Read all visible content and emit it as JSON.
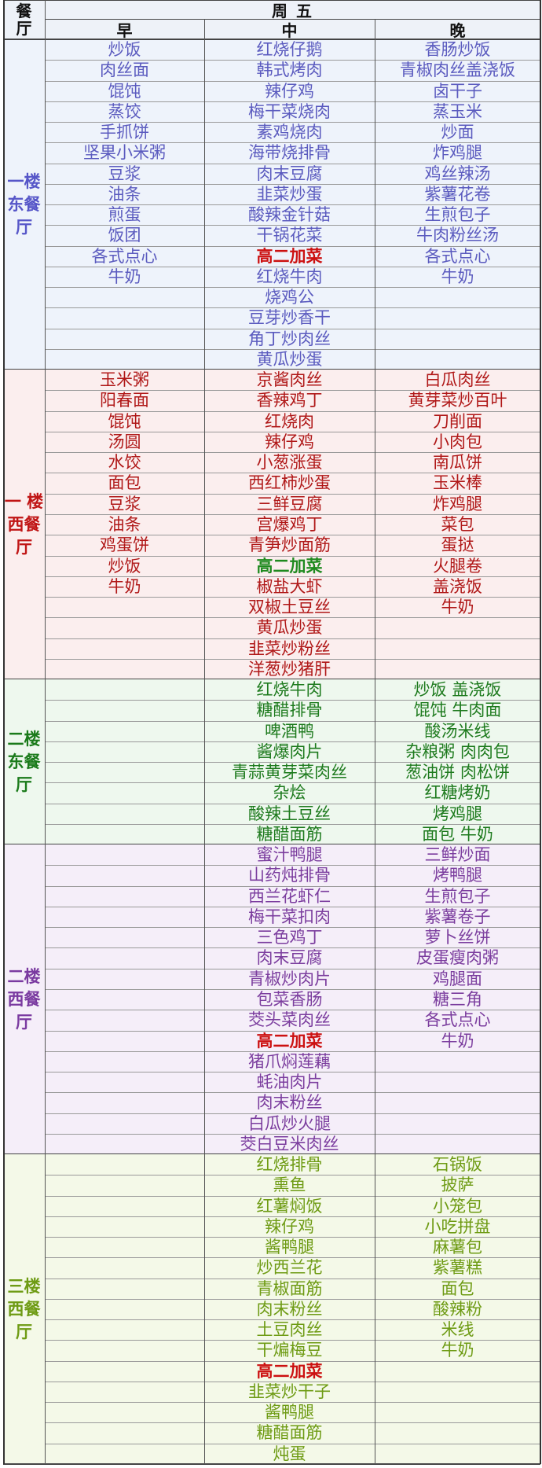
{
  "header": {
    "canteen_label": "餐\n厅",
    "day": "周 五",
    "meal_labels": [
      "早",
      "中",
      "晚"
    ]
  },
  "sections": [
    {
      "hall": "一楼\n东餐\n厅",
      "color": "#5b5bbf",
      "hall_color": "#5656c8",
      "bg": "#eef3fb",
      "special_color": "#cc1111",
      "rows": 16,
      "breakfast": [
        "炒饭",
        "肉丝面",
        "馄饨",
        "蒸饺",
        "手抓饼",
        "坚果小米粥",
        "豆浆",
        "油条",
        "煎蛋",
        "饭团",
        "各式点心",
        "牛奶"
      ],
      "lunch": [
        "红烧仔鹅",
        "韩式烤肉",
        "辣仔鸡",
        "梅干菜烧肉",
        "素鸡烧肉",
        "海带烧排骨",
        "肉末豆腐",
        "韭菜炒蛋",
        "酸辣金针菇",
        "干锅花菜",
        "高二加菜",
        "红烧牛肉",
        "烧鸡公",
        "豆芽炒香干",
        "角丁炒肉丝",
        "黄瓜炒蛋"
      ],
      "lunch_special_index": 10,
      "dinner": [
        "香肠炒饭",
        "青椒肉丝盖浇饭",
        "卤干子",
        "蒸玉米",
        "炒面",
        "炸鸡腿",
        "鸡丝辣汤",
        "紫薯花卷",
        "生煎包子",
        "牛肉粉丝汤",
        "各式点心",
        "牛奶"
      ]
    },
    {
      "hall": "一 楼\n西餐\n厅",
      "color": "#b01818",
      "hall_color": "#c01515",
      "bg": "#fbeeee",
      "special_color": "#1f8a1f",
      "rows": 15,
      "breakfast": [
        "玉米粥",
        "阳春面",
        "馄饨",
        "汤圆",
        "水饺",
        "面包",
        "豆浆",
        "油条",
        "鸡蛋饼",
        "炒饭",
        "牛奶"
      ],
      "lunch": [
        "京酱肉丝",
        "香辣鸡丁",
        "红烧肉",
        "辣仔鸡",
        "小葱涨蛋",
        "西红柿炒蛋",
        "三鲜豆腐",
        "宫爆鸡丁",
        "青笋炒面筋",
        "高二加菜",
        "椒盐大虾",
        "双椒土豆丝",
        "黄瓜炒蛋",
        "韭菜炒粉丝",
        "洋葱炒猪肝"
      ],
      "lunch_special_index": 9,
      "dinner": [
        "白瓜肉丝",
        "黄芽菜炒百叶",
        "刀削面",
        "小肉包",
        "南瓜饼",
        "玉米棒",
        "炸鸡腿",
        "菜包",
        "蛋挞",
        "火腿卷",
        "盖浇饭",
        "牛奶"
      ]
    },
    {
      "hall": "二楼\n东餐\n厅",
      "color": "#1d7a1d",
      "hall_color": "#1a7a1a",
      "bg": "#eef8ee",
      "special_color": "#1d7a1d",
      "rows": 8,
      "breakfast": [],
      "lunch": [
        "红烧牛肉",
        "糖醋排骨",
        "啤酒鸭",
        "酱爆肉片",
        "青蒜黄芽菜肉丝",
        "杂烩",
        "酸辣土豆丝",
        "糖醋面筋"
      ],
      "lunch_special_index": -1,
      "dinner": [
        "炒饭 盖浇饭",
        "馄饨 牛肉面",
        "酸汤米线",
        "杂粮粥 肉肉包",
        "葱油饼 肉松饼",
        "红糖烤奶",
        "烤鸡腿",
        "面包 牛奶"
      ]
    },
    {
      "hall": "二楼\n西餐\n厅",
      "color": "#7b3d9e",
      "hall_color": "#7a3aa0",
      "bg": "#f5eef9",
      "special_color": "#cc1111",
      "rows": 15,
      "breakfast": [],
      "lunch": [
        "蜜汁鸭腿",
        "山药炖排骨",
        "西兰花虾仁",
        "梅干菜扣肉",
        "三色鸡丁",
        "肉末豆腐",
        "青椒炒肉片",
        "包菜香肠",
        "茭头菜肉丝",
        "高二加菜",
        "猪爪焖莲藕",
        "蚝油肉片",
        "肉末粉丝",
        "白瓜炒火腿",
        "茭白豆米肉丝"
      ],
      "lunch_special_index": 9,
      "dinner": [
        "三鲜炒面",
        "烤鸭腿",
        "生煎包子",
        "紫薯卷子",
        "萝卜丝饼",
        "皮蛋瘦肉粥",
        "鸡腿面",
        "糖三角",
        "各式点心",
        "牛奶"
      ]
    },
    {
      "hall": "三楼\n西餐\n厅",
      "color": "#6e9b14",
      "hall_color": "#6e9b14",
      "bg": "#f4f9e8",
      "special_color": "#cc1111",
      "rows": 15,
      "breakfast": [],
      "lunch": [
        "红烧排骨",
        "熏鱼",
        "红薯焖饭",
        "辣仔鸡",
        "酱鸭腿",
        "炒西兰花",
        "青椒面筋",
        "肉末粉丝",
        "土豆肉丝",
        "干煸梅豆",
        "高二加菜",
        "韭菜炒干子",
        "酱鸭腿",
        "糖醋面筋",
        "炖蛋"
      ],
      "lunch_special_index": 10,
      "dinner": [
        "石锅饭",
        "披萨",
        "小笼包",
        "小吃拼盘",
        "麻薯包",
        "紫薯糕",
        "面包",
        "酸辣粉",
        "米线",
        "牛奶"
      ]
    }
  ]
}
